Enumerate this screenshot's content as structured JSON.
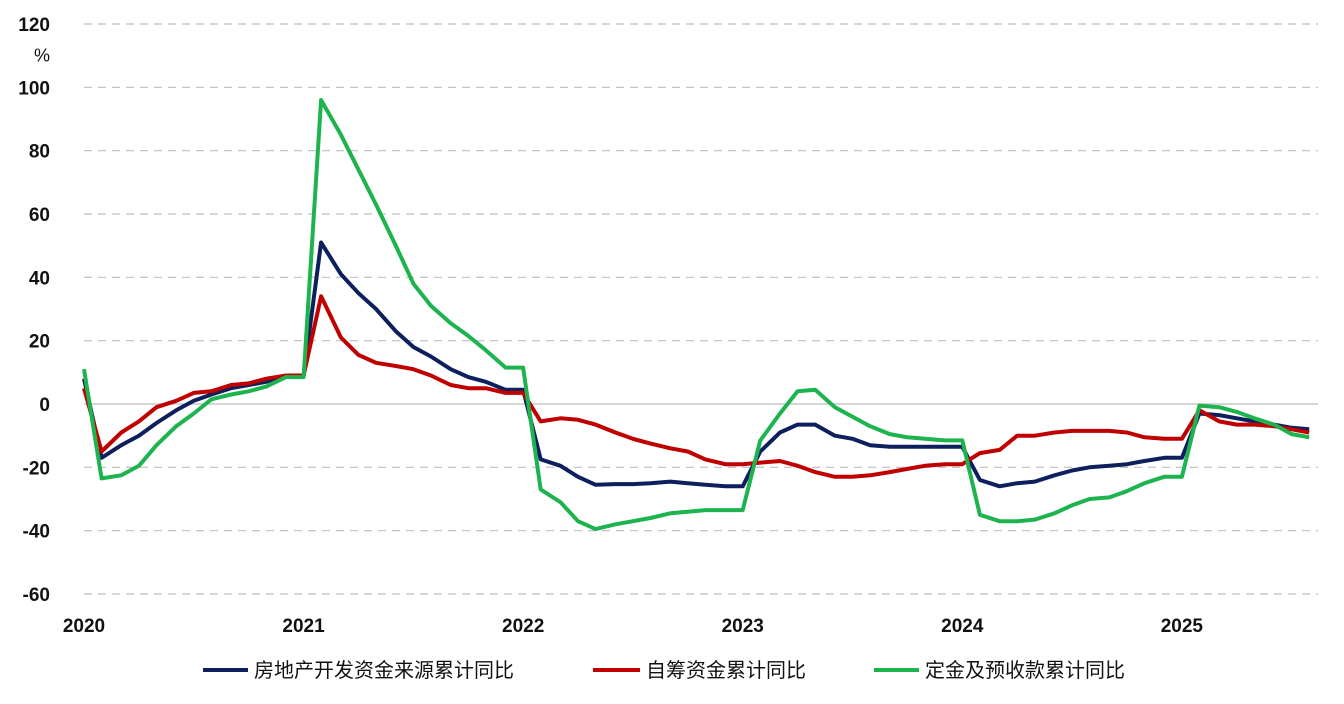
{
  "chart_data": {
    "type": "line",
    "unit_label": "%",
    "ylim": [
      -60,
      120
    ],
    "yticks": [
      120,
      100,
      80,
      60,
      40,
      20,
      0,
      -20,
      -40,
      -60
    ],
    "xlim": [
      2020,
      2025.62
    ],
    "xticks": [
      "2020",
      "2021",
      "2022",
      "2023",
      "2024",
      "2025"
    ],
    "grid": true,
    "legend_position": "bottom",
    "series": [
      {
        "name": "房地产开发资金来源累计同比",
        "color": "#0d1f5c",
        "points": [
          [
            2020.0,
            8
          ],
          [
            2020.08,
            -17
          ],
          [
            2020.17,
            -13
          ],
          [
            2020.25,
            -10
          ],
          [
            2020.33,
            -6
          ],
          [
            2020.42,
            -2
          ],
          [
            2020.5,
            1
          ],
          [
            2020.58,
            3
          ],
          [
            2020.67,
            5
          ],
          [
            2020.75,
            6
          ],
          [
            2020.83,
            7
          ],
          [
            2020.92,
            9
          ],
          [
            2021.0,
            9
          ],
          [
            2021.08,
            51
          ],
          [
            2021.17,
            41
          ],
          [
            2021.25,
            35
          ],
          [
            2021.33,
            30
          ],
          [
            2021.42,
            23
          ],
          [
            2021.5,
            18
          ],
          [
            2021.58,
            15
          ],
          [
            2021.67,
            11
          ],
          [
            2021.75,
            8.5
          ],
          [
            2021.83,
            7
          ],
          [
            2021.92,
            4.5
          ],
          [
            2022.0,
            4.5
          ],
          [
            2022.08,
            -17.5
          ],
          [
            2022.17,
            -19.5
          ],
          [
            2022.25,
            -23
          ],
          [
            2022.33,
            -25.5
          ],
          [
            2022.42,
            -25.3
          ],
          [
            2022.5,
            -25.3
          ],
          [
            2022.58,
            -25
          ],
          [
            2022.67,
            -24.5
          ],
          [
            2022.75,
            -25
          ],
          [
            2022.83,
            -25.5
          ],
          [
            2022.92,
            -26
          ],
          [
            2023.0,
            -26
          ],
          [
            2023.08,
            -15
          ],
          [
            2023.17,
            -9
          ],
          [
            2023.25,
            -6.5
          ],
          [
            2023.33,
            -6.5
          ],
          [
            2023.42,
            -10
          ],
          [
            2023.5,
            -11
          ],
          [
            2023.58,
            -13
          ],
          [
            2023.67,
            -13.5
          ],
          [
            2023.75,
            -13.5
          ],
          [
            2023.83,
            -13.5
          ],
          [
            2023.92,
            -13.5
          ],
          [
            2024.0,
            -13.5
          ],
          [
            2024.08,
            -24
          ],
          [
            2024.17,
            -26
          ],
          [
            2024.25,
            -25
          ],
          [
            2024.33,
            -24.5
          ],
          [
            2024.42,
            -22.5
          ],
          [
            2024.5,
            -21
          ],
          [
            2024.58,
            -20
          ],
          [
            2024.67,
            -19.5
          ],
          [
            2024.75,
            -19
          ],
          [
            2024.83,
            -18
          ],
          [
            2024.92,
            -17
          ],
          [
            2025.0,
            -17
          ],
          [
            2025.08,
            -3
          ],
          [
            2025.17,
            -3.5
          ],
          [
            2025.25,
            -4.5
          ],
          [
            2025.33,
            -5.5
          ],
          [
            2025.42,
            -6.5
          ],
          [
            2025.5,
            -7.5
          ],
          [
            2025.58,
            -8
          ]
        ]
      },
      {
        "name": "自筹资金累计同比",
        "color": "#c00000",
        "points": [
          [
            2020.0,
            5
          ],
          [
            2020.08,
            -15
          ],
          [
            2020.17,
            -9
          ],
          [
            2020.25,
            -5.5
          ],
          [
            2020.33,
            -1
          ],
          [
            2020.42,
            1
          ],
          [
            2020.5,
            3.5
          ],
          [
            2020.58,
            4
          ],
          [
            2020.67,
            6
          ],
          [
            2020.75,
            6.5
          ],
          [
            2020.83,
            8
          ],
          [
            2020.92,
            9
          ],
          [
            2021.0,
            9
          ],
          [
            2021.08,
            34
          ],
          [
            2021.17,
            21
          ],
          [
            2021.25,
            15.5
          ],
          [
            2021.33,
            13
          ],
          [
            2021.42,
            12
          ],
          [
            2021.5,
            11
          ],
          [
            2021.58,
            9
          ],
          [
            2021.67,
            6
          ],
          [
            2021.75,
            5
          ],
          [
            2021.83,
            5
          ],
          [
            2021.92,
            3.5
          ],
          [
            2022.0,
            3.5
          ],
          [
            2022.08,
            -5.5
          ],
          [
            2022.17,
            -4.5
          ],
          [
            2022.25,
            -5
          ],
          [
            2022.33,
            -6.5
          ],
          [
            2022.42,
            -9
          ],
          [
            2022.5,
            -11
          ],
          [
            2022.58,
            -12.5
          ],
          [
            2022.67,
            -14
          ],
          [
            2022.75,
            -15
          ],
          [
            2022.83,
            -17.5
          ],
          [
            2022.92,
            -19
          ],
          [
            2023.0,
            -19
          ],
          [
            2023.08,
            -18.5
          ],
          [
            2023.17,
            -18
          ],
          [
            2023.25,
            -19.5
          ],
          [
            2023.33,
            -21.5
          ],
          [
            2023.42,
            -23
          ],
          [
            2023.5,
            -23
          ],
          [
            2023.58,
            -22.5
          ],
          [
            2023.67,
            -21.5
          ],
          [
            2023.75,
            -20.5
          ],
          [
            2023.83,
            -19.5
          ],
          [
            2023.92,
            -19
          ],
          [
            2024.0,
            -19
          ],
          [
            2024.08,
            -15.5
          ],
          [
            2024.17,
            -14.5
          ],
          [
            2024.25,
            -10
          ],
          [
            2024.33,
            -10
          ],
          [
            2024.42,
            -9
          ],
          [
            2024.5,
            -8.5
          ],
          [
            2024.58,
            -8.5
          ],
          [
            2024.67,
            -8.5
          ],
          [
            2024.75,
            -9
          ],
          [
            2024.83,
            -10.5
          ],
          [
            2024.92,
            -11
          ],
          [
            2025.0,
            -11
          ],
          [
            2025.08,
            -2
          ],
          [
            2025.17,
            -5.5
          ],
          [
            2025.25,
            -6.5
          ],
          [
            2025.33,
            -6.5
          ],
          [
            2025.42,
            -7
          ],
          [
            2025.5,
            -8
          ],
          [
            2025.58,
            -9
          ]
        ]
      },
      {
        "name": "定金及预收款累计同比",
        "color": "#1db34e",
        "points": [
          [
            2020.0,
            11
          ],
          [
            2020.08,
            -23.5
          ],
          [
            2020.17,
            -22.5
          ],
          [
            2020.25,
            -19.5
          ],
          [
            2020.33,
            -13
          ],
          [
            2020.42,
            -7
          ],
          [
            2020.5,
            -3
          ],
          [
            2020.58,
            1.5
          ],
          [
            2020.67,
            3
          ],
          [
            2020.75,
            4
          ],
          [
            2020.83,
            5.5
          ],
          [
            2020.92,
            8.5
          ],
          [
            2021.0,
            8.5
          ],
          [
            2021.08,
            96
          ],
          [
            2021.17,
            85
          ],
          [
            2021.25,
            74
          ],
          [
            2021.33,
            63
          ],
          [
            2021.42,
            50
          ],
          [
            2021.5,
            38
          ],
          [
            2021.58,
            31
          ],
          [
            2021.67,
            25.5
          ],
          [
            2021.75,
            21.5
          ],
          [
            2021.83,
            17
          ],
          [
            2021.92,
            11.5
          ],
          [
            2022.0,
            11.5
          ],
          [
            2022.08,
            -27
          ],
          [
            2022.17,
            -31
          ],
          [
            2022.25,
            -37
          ],
          [
            2022.33,
            -39.5
          ],
          [
            2022.42,
            -38
          ],
          [
            2022.5,
            -37
          ],
          [
            2022.58,
            -36
          ],
          [
            2022.67,
            -34.5
          ],
          [
            2022.75,
            -34
          ],
          [
            2022.83,
            -33.5
          ],
          [
            2022.92,
            -33.5
          ],
          [
            2023.0,
            -33.5
          ],
          [
            2023.08,
            -11.5
          ],
          [
            2023.17,
            -3
          ],
          [
            2023.25,
            4
          ],
          [
            2023.33,
            4.5
          ],
          [
            2023.42,
            -1
          ],
          [
            2023.5,
            -4
          ],
          [
            2023.58,
            -7
          ],
          [
            2023.67,
            -9.5
          ],
          [
            2023.75,
            -10.5
          ],
          [
            2023.83,
            -11
          ],
          [
            2023.92,
            -11.5
          ],
          [
            2024.0,
            -11.5
          ],
          [
            2024.08,
            -35
          ],
          [
            2024.17,
            -37
          ],
          [
            2024.25,
            -37
          ],
          [
            2024.33,
            -36.5
          ],
          [
            2024.42,
            -34.5
          ],
          [
            2024.5,
            -32
          ],
          [
            2024.58,
            -30
          ],
          [
            2024.67,
            -29.5
          ],
          [
            2024.75,
            -27.5
          ],
          [
            2024.83,
            -25
          ],
          [
            2024.92,
            -23
          ],
          [
            2025.0,
            -23
          ],
          [
            2025.08,
            -0.5
          ],
          [
            2025.17,
            -1
          ],
          [
            2025.25,
            -2.5
          ],
          [
            2025.33,
            -4.5
          ],
          [
            2025.42,
            -6.5
          ],
          [
            2025.5,
            -9.5
          ],
          [
            2025.58,
            -10.5
          ]
        ]
      }
    ]
  }
}
